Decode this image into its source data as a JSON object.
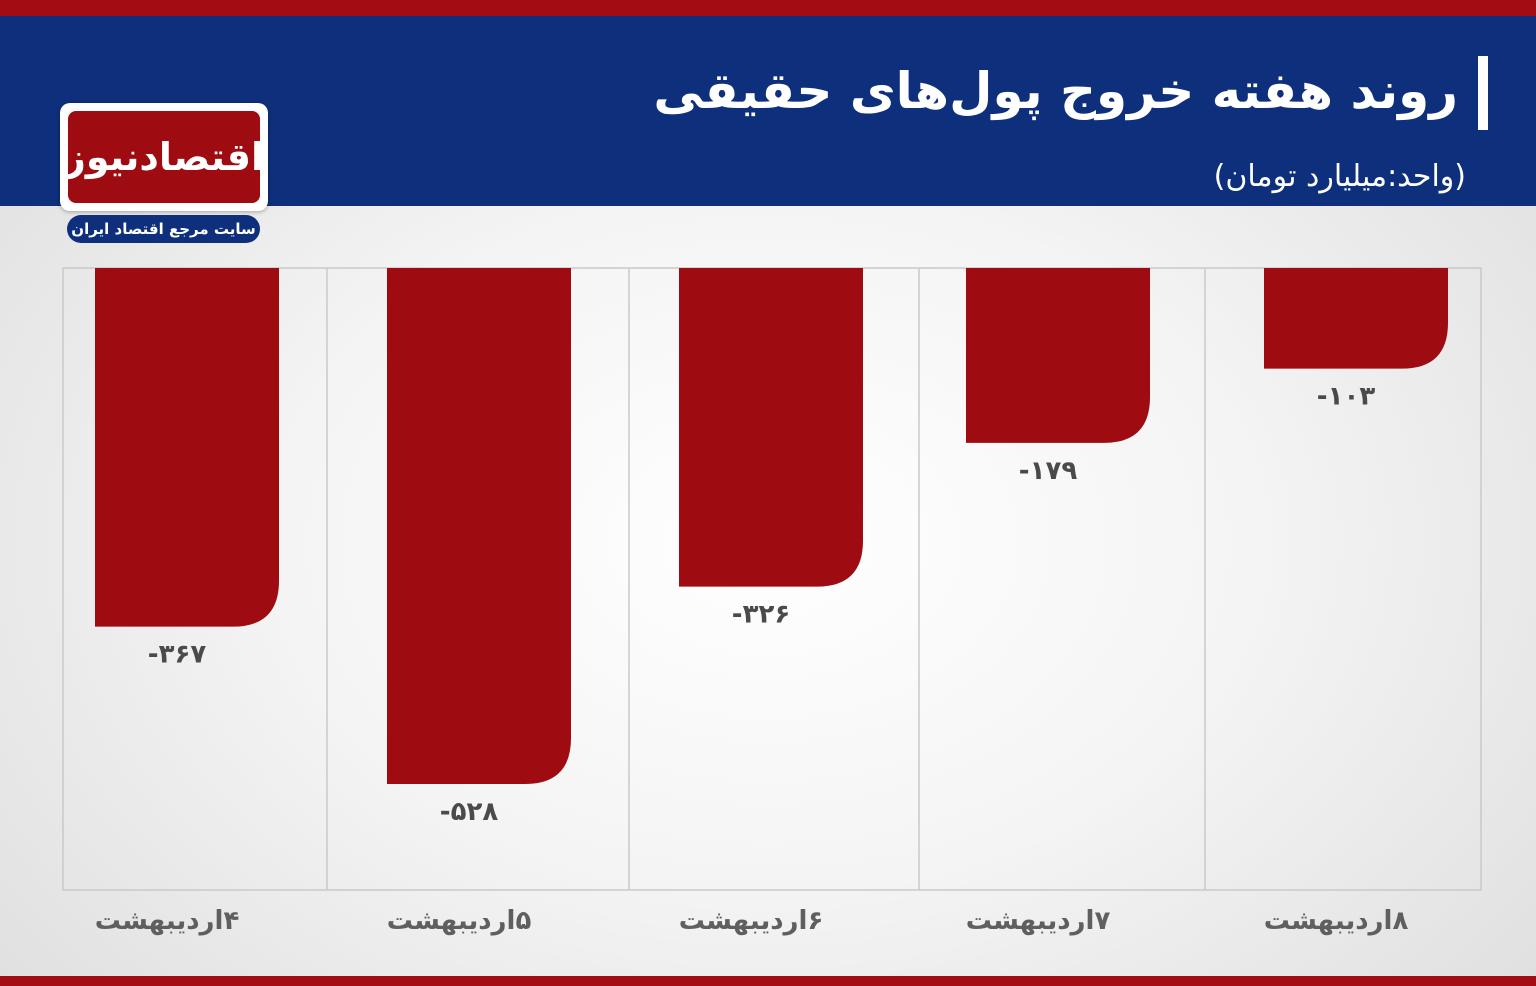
{
  "header": {
    "title": "روند هفته خروج پول‌های حقیقی",
    "subtitle": "(واحد:میلیارد تومان)"
  },
  "logo": {
    "name": "اقتصادنیوز",
    "tagline": "سایت مرجع اقتصاد ایران"
  },
  "colors": {
    "header": "#0e2f7b",
    "accent": "#a30d12",
    "bar": "#9e0b10"
  },
  "chart_data": {
    "type": "bar",
    "title": "روند هفته خروج پول‌های حقیقی",
    "ylabel": "(واحد:میلیارد تومان)",
    "categories": [
      "۴اردیبهشت",
      "۵اردیبهشت",
      "۶اردیبهشت",
      "۷اردیبهشت",
      "۸اردیبهشت"
    ],
    "values": [
      -367,
      -528,
      -326,
      -179,
      -103
    ],
    "value_labels": [
      "-۳۶۷",
      "-۵۲۸",
      "-۳۲۶",
      "-۱۷۹",
      "-۱۰۳"
    ],
    "ylim": [
      -650,
      0
    ],
    "grid": "vertical separators"
  }
}
